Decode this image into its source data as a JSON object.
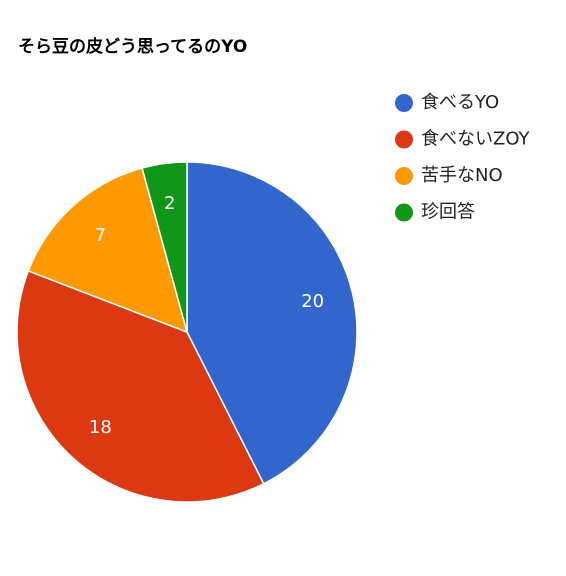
{
  "chart_data": {
    "type": "pie",
    "title": "そら豆の皮どう思ってるのYO",
    "categories": [
      "食べるYO",
      "食べないZOY",
      "苦手なNO",
      "珍回答"
    ],
    "values": [
      20,
      18,
      7,
      2
    ],
    "colors": [
      "#3366cc",
      "#dc3912",
      "#ff9900",
      "#109618"
    ],
    "legend": "right"
  }
}
